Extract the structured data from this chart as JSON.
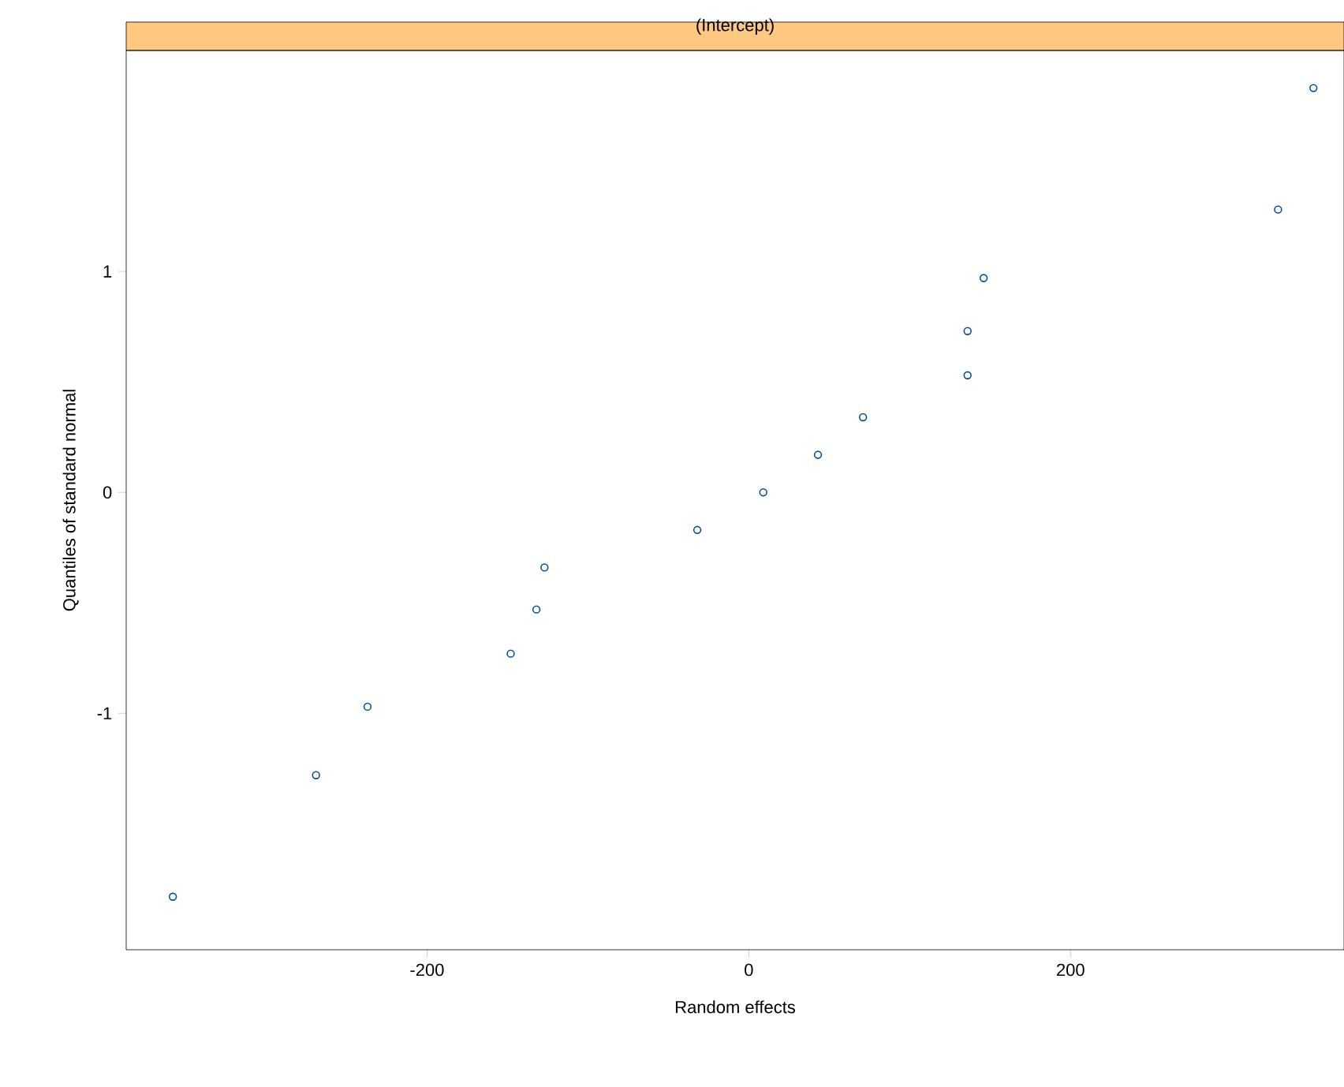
{
  "chart_data": {
    "type": "scatter",
    "title": "(Intercept)",
    "xlabel": "Random effects",
    "ylabel": "Quantiles of standard normal",
    "x": [
      -358,
      -269,
      -237,
      -148,
      -132,
      -127,
      -32,
      9,
      43,
      71,
      136,
      136,
      146,
      329,
      351
    ],
    "series": [
      {
        "color": "#00509f",
        "values": [
          -1.83,
          -1.28,
          -0.97,
          -0.73,
          -0.53,
          -0.34,
          -0.17,
          0,
          0.17,
          0.34,
          0.53,
          0.73,
          0.97,
          1.28,
          1.83
        ]
      }
    ],
    "xlim": [
      -387,
      370
    ],
    "ylim": [
      -2.07,
      2.0
    ],
    "xticks": [
      -200,
      0,
      200
    ],
    "yticks": [
      -1,
      0,
      1
    ],
    "grid": false,
    "marker": "circle"
  }
}
